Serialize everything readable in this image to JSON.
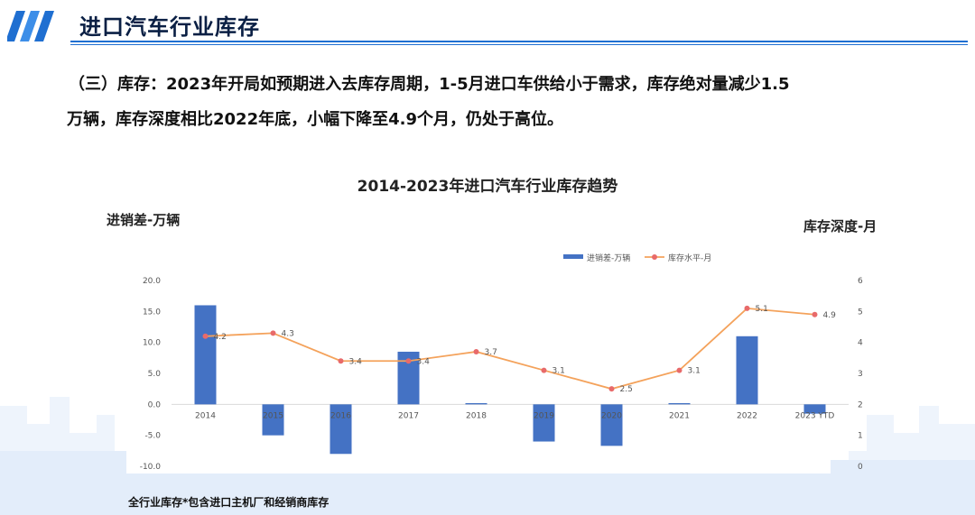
{
  "page": {
    "title": "进口汽车行业库存",
    "summary_line1": "（三）库存：2023年开局如预期进入去库存周期，1-5月进口车供给小于需求，库存绝对量减少1.5",
    "summary_line2": "万辆，库存深度相比2022年底，小幅下降至4.9个月，仍处于高位。",
    "footnote": "全行业库存*包含进口主机厂和经销商库存"
  },
  "colors": {
    "bar": "#4472c4",
    "line": "#f4a25b",
    "marker": "#e86a6a",
    "accent": "#1f6fd1",
    "title_text": "#0a1f44"
  },
  "chart_data": {
    "type": "bar+line",
    "title": "2014-2023年进口汽车行业库存趋势",
    "left_axis_title": "进销差-万辆",
    "right_axis_title": "库存深度-月",
    "categories": [
      "2014",
      "2015",
      "2016",
      "2017",
      "2018",
      "2019",
      "2020",
      "2021",
      "2022",
      "2023 YTD"
    ],
    "series": [
      {
        "name": "进销差-万辆",
        "type": "bar",
        "axis": "left",
        "values": [
          16.0,
          -5.0,
          -8.0,
          8.5,
          0.2,
          -6.0,
          -6.7,
          0.2,
          11.0,
          -1.5
        ]
      },
      {
        "name": "库存水平-月",
        "type": "line",
        "axis": "right",
        "values": [
          4.2,
          4.3,
          3.4,
          3.4,
          3.7,
          3.1,
          2.5,
          3.1,
          5.1,
          4.9
        ],
        "labels": [
          "4.2",
          "4.3",
          "3.4",
          "3.4",
          "3.7",
          "3.1",
          "2.5",
          "3.1",
          "5.1",
          "4.9"
        ]
      }
    ],
    "y_left": {
      "min": -10,
      "max": 20,
      "ticks": [
        "-10.0",
        "-5.0",
        "0.0",
        "5.0",
        "10.0",
        "15.0",
        "20.0"
      ]
    },
    "y_right": {
      "min": 0,
      "max": 6,
      "ticks": [
        "0",
        "1",
        "2",
        "3",
        "4",
        "5",
        "6"
      ]
    },
    "legend_position": "top-center",
    "grid": false
  }
}
